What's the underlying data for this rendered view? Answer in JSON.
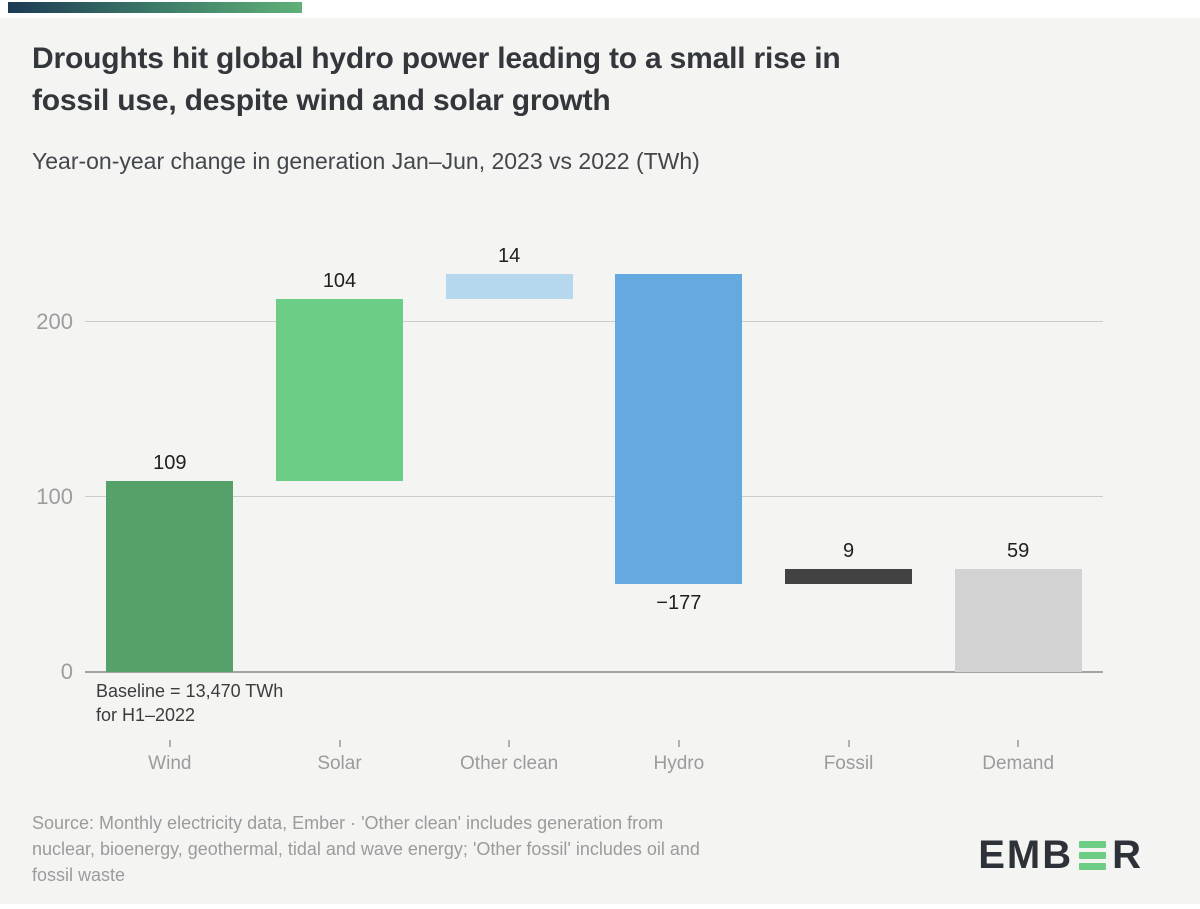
{
  "brand_strip": {
    "gradient_from": "#1d3a55",
    "gradient_mid": "#3c7a68",
    "gradient_to": "#5fb078"
  },
  "header": {
    "title_line1": "Droughts hit global hydro power leading to a small rise in",
    "title_line2": "fossil use, despite wind and solar growth",
    "subtitle": "Year-on-year change in generation Jan–Jun, 2023 vs 2022 (TWh)"
  },
  "chart_data": {
    "type": "bar",
    "subtype": "waterfall",
    "title": "Year-on-year change in generation Jan–Jun, 2023 vs 2022 (TWh)",
    "unit": "TWh",
    "categories": [
      "Wind",
      "Solar",
      "Other clean",
      "Hydro",
      "Fossil",
      "Demand"
    ],
    "values": [
      109,
      104,
      14,
      -177,
      9,
      59
    ],
    "bars": [
      {
        "category": "Wind",
        "value": 109,
        "value_label": "109",
        "span_start": 0,
        "span_end": 109,
        "color": "#55a169",
        "value_label_position": "above"
      },
      {
        "category": "Solar",
        "value": 104,
        "value_label": "104",
        "span_start": 109,
        "span_end": 213,
        "color": "#6ccd87",
        "value_label_position": "above"
      },
      {
        "category": "Other clean",
        "value": 14,
        "value_label": "14",
        "span_start": 213,
        "span_end": 227,
        "color": "#b5d8ef",
        "value_label_position": "above"
      },
      {
        "category": "Hydro",
        "value": -177,
        "value_label": "−177",
        "span_start": 227,
        "span_end": 50,
        "color": "#64a9e0",
        "value_label_position": "below"
      },
      {
        "category": "Fossil",
        "value": 9,
        "value_label": "9",
        "span_start": 50,
        "span_end": 59,
        "color": "#424242",
        "value_label_position": "above"
      },
      {
        "category": "Demand",
        "value": 59,
        "value_label": "59",
        "span_start": 0,
        "span_end": 59,
        "color": "#d2d2d2",
        "value_label_position": "above"
      }
    ],
    "y_axis": {
      "ticks": [
        0,
        100,
        200
      ],
      "range": [
        0,
        240
      ],
      "gridlines": true,
      "legend": "none"
    },
    "annotation": {
      "line1": "Baseline = 13,470 TWh",
      "line2": "for H1–2022"
    }
  },
  "footer": {
    "source_line1": "Source: Monthly electricity data, Ember · 'Other clean' includes generation from",
    "source_line2": "nuclear, bioenergy, geothermal, tidal and wave energy; 'Other fossil' includes oil and",
    "source_line3": "fossil waste",
    "logo": {
      "prefix": "EMB",
      "suffix": "R",
      "bar_color": "#6dcd85",
      "text_color": "#2d3238"
    }
  }
}
